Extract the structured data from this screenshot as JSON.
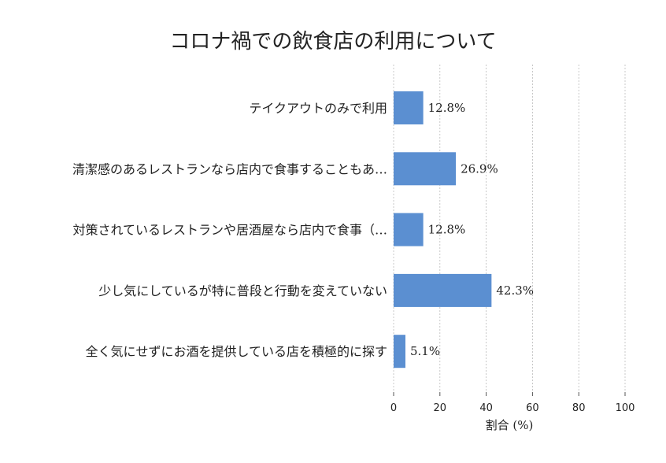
{
  "chart_data": {
    "type": "bar",
    "orientation": "horizontal",
    "title": "コロナ禍での飲食店の利用について",
    "xlabel": "割合 (%)",
    "ylabel": "",
    "xlim": [
      0,
      100
    ],
    "xticks": [
      0,
      20,
      40,
      60,
      80,
      100
    ],
    "grid": "x-dashed",
    "categories": [
      "テイクアウトのみで利用",
      "清潔感のあるレストランなら店内で食事することもあ…",
      "対策されているレストランや居酒屋なら店内で食事（…",
      "少し気にしているが特に普段と行動を変えていない",
      "全く気にせずにお酒を提供している店を積極的に探す"
    ],
    "values": [
      12.8,
      26.9,
      12.8,
      42.3,
      5.1
    ],
    "value_labels": [
      "12.8%",
      "26.9%",
      "12.8%",
      "42.3%",
      "5.1%"
    ],
    "bar_color": "#5b8fd1"
  }
}
